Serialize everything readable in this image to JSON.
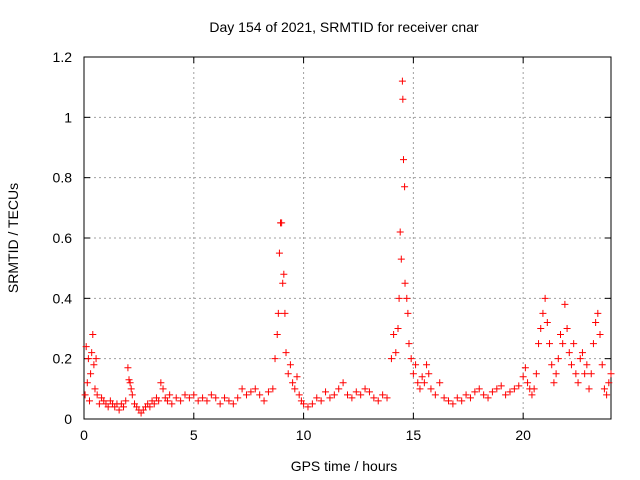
{
  "chart_data": {
    "type": "scatter",
    "title": "Day 154 of 2021, SRMTID for receiver cnar",
    "xlabel": "GPS time / hours",
    "ylabel": "SRMTID / TECUs",
    "xlim": [
      0,
      24
    ],
    "ylim": [
      0,
      1.2
    ],
    "xticks": [
      0,
      5,
      10,
      15,
      20
    ],
    "xtick_labels": [
      "0",
      "5",
      "10",
      "15",
      "20"
    ],
    "yticks": [
      0,
      0.2,
      0.4,
      0.6,
      0.8,
      1,
      1.2
    ],
    "ytick_labels": [
      "0",
      "0.2",
      "0.4",
      "0.6",
      "0.8",
      "1",
      "1.2"
    ],
    "grid": true,
    "marker": "+",
    "color": "#ff0000",
    "series": [
      {
        "name": "SRMTID",
        "points": [
          [
            0.05,
            0.08
          ],
          [
            0.1,
            0.24
          ],
          [
            0.15,
            0.12
          ],
          [
            0.2,
            0.2
          ],
          [
            0.25,
            0.06
          ],
          [
            0.3,
            0.15
          ],
          [
            0.35,
            0.22
          ],
          [
            0.4,
            0.28
          ],
          [
            0.45,
            0.18
          ],
          [
            0.5,
            0.1
          ],
          [
            0.55,
            0.2
          ],
          [
            0.6,
            0.08
          ],
          [
            0.7,
            0.05
          ],
          [
            0.8,
            0.07
          ],
          [
            0.9,
            0.06
          ],
          [
            1.0,
            0.05
          ],
          [
            1.1,
            0.04
          ],
          [
            1.2,
            0.06
          ],
          [
            1.3,
            0.05
          ],
          [
            1.4,
            0.04
          ],
          [
            1.5,
            0.05
          ],
          [
            1.6,
            0.03
          ],
          [
            1.7,
            0.05
          ],
          [
            1.8,
            0.04
          ],
          [
            1.9,
            0.06
          ],
          [
            2.0,
            0.17
          ],
          [
            2.05,
            0.13
          ],
          [
            2.1,
            0.12
          ],
          [
            2.15,
            0.1
          ],
          [
            2.2,
            0.08
          ],
          [
            2.3,
            0.05
          ],
          [
            2.4,
            0.04
          ],
          [
            2.5,
            0.03
          ],
          [
            2.6,
            0.02
          ],
          [
            2.7,
            0.03
          ],
          [
            2.8,
            0.04
          ],
          [
            2.9,
            0.05
          ],
          [
            3.0,
            0.04
          ],
          [
            3.1,
            0.06
          ],
          [
            3.2,
            0.05
          ],
          [
            3.3,
            0.07
          ],
          [
            3.4,
            0.06
          ],
          [
            3.5,
            0.12
          ],
          [
            3.6,
            0.1
          ],
          [
            3.7,
            0.07
          ],
          [
            3.8,
            0.06
          ],
          [
            3.9,
            0.08
          ],
          [
            4.0,
            0.05
          ],
          [
            4.2,
            0.07
          ],
          [
            4.4,
            0.06
          ],
          [
            4.6,
            0.08
          ],
          [
            4.8,
            0.07
          ],
          [
            5.0,
            0.08
          ],
          [
            5.2,
            0.06
          ],
          [
            5.4,
            0.07
          ],
          [
            5.6,
            0.06
          ],
          [
            5.8,
            0.08
          ],
          [
            6.0,
            0.07
          ],
          [
            6.2,
            0.05
          ],
          [
            6.4,
            0.07
          ],
          [
            6.6,
            0.06
          ],
          [
            6.8,
            0.05
          ],
          [
            7.0,
            0.07
          ],
          [
            7.2,
            0.1
          ],
          [
            7.4,
            0.08
          ],
          [
            7.6,
            0.09
          ],
          [
            7.8,
            0.1
          ],
          [
            8.0,
            0.08
          ],
          [
            8.2,
            0.06
          ],
          [
            8.4,
            0.09
          ],
          [
            8.6,
            0.1
          ],
          [
            8.7,
            0.2
          ],
          [
            8.8,
            0.28
          ],
          [
            8.85,
            0.35
          ],
          [
            8.9,
            0.55
          ],
          [
            8.95,
            0.65
          ],
          [
            9.0,
            0.65
          ],
          [
            9.05,
            0.45
          ],
          [
            9.1,
            0.48
          ],
          [
            9.15,
            0.35
          ],
          [
            9.2,
            0.22
          ],
          [
            9.3,
            0.15
          ],
          [
            9.4,
            0.18
          ],
          [
            9.5,
            0.12
          ],
          [
            9.6,
            0.1
          ],
          [
            9.7,
            0.14
          ],
          [
            9.8,
            0.08
          ],
          [
            9.9,
            0.06
          ],
          [
            10.0,
            0.05
          ],
          [
            10.2,
            0.04
          ],
          [
            10.4,
            0.05
          ],
          [
            10.6,
            0.07
          ],
          [
            10.8,
            0.06
          ],
          [
            11.0,
            0.09
          ],
          [
            11.2,
            0.07
          ],
          [
            11.4,
            0.08
          ],
          [
            11.6,
            0.1
          ],
          [
            11.8,
            0.12
          ],
          [
            12.0,
            0.08
          ],
          [
            12.2,
            0.07
          ],
          [
            12.4,
            0.09
          ],
          [
            12.6,
            0.08
          ],
          [
            12.8,
            0.1
          ],
          [
            13.0,
            0.09
          ],
          [
            13.2,
            0.07
          ],
          [
            13.4,
            0.06
          ],
          [
            13.6,
            0.08
          ],
          [
            13.8,
            0.07
          ],
          [
            14.0,
            0.2
          ],
          [
            14.1,
            0.28
          ],
          [
            14.2,
            0.22
          ],
          [
            14.3,
            0.3
          ],
          [
            14.35,
            0.4
          ],
          [
            14.4,
            0.62
          ],
          [
            14.45,
            0.53
          ],
          [
            14.5,
            1.12
          ],
          [
            14.52,
            1.06
          ],
          [
            14.55,
            0.86
          ],
          [
            14.6,
            0.77
          ],
          [
            14.62,
            0.45
          ],
          [
            14.7,
            0.4
          ],
          [
            14.75,
            0.35
          ],
          [
            14.8,
            0.25
          ],
          [
            14.9,
            0.2
          ],
          [
            15.0,
            0.15
          ],
          [
            15.1,
            0.18
          ],
          [
            15.2,
            0.12
          ],
          [
            15.3,
            0.1
          ],
          [
            15.4,
            0.14
          ],
          [
            15.5,
            0.12
          ],
          [
            15.6,
            0.18
          ],
          [
            15.7,
            0.15
          ],
          [
            15.8,
            0.1
          ],
          [
            16.0,
            0.08
          ],
          [
            16.2,
            0.12
          ],
          [
            16.4,
            0.07
          ],
          [
            16.6,
            0.06
          ],
          [
            16.8,
            0.05
          ],
          [
            17.0,
            0.07
          ],
          [
            17.2,
            0.06
          ],
          [
            17.4,
            0.08
          ],
          [
            17.6,
            0.07
          ],
          [
            17.8,
            0.09
          ],
          [
            18.0,
            0.1
          ],
          [
            18.2,
            0.08
          ],
          [
            18.4,
            0.07
          ],
          [
            18.6,
            0.09
          ],
          [
            18.8,
            0.1
          ],
          [
            19.0,
            0.11
          ],
          [
            19.2,
            0.08
          ],
          [
            19.4,
            0.09
          ],
          [
            19.6,
            0.1
          ],
          [
            19.8,
            0.11
          ],
          [
            20.0,
            0.14
          ],
          [
            20.1,
            0.17
          ],
          [
            20.2,
            0.12
          ],
          [
            20.3,
            0.1
          ],
          [
            20.4,
            0.08
          ],
          [
            20.5,
            0.1
          ],
          [
            20.6,
            0.15
          ],
          [
            20.7,
            0.25
          ],
          [
            20.8,
            0.3
          ],
          [
            20.9,
            0.35
          ],
          [
            21.0,
            0.4
          ],
          [
            21.1,
            0.32
          ],
          [
            21.2,
            0.25
          ],
          [
            21.3,
            0.18
          ],
          [
            21.4,
            0.12
          ],
          [
            21.5,
            0.15
          ],
          [
            21.6,
            0.2
          ],
          [
            21.7,
            0.28
          ],
          [
            21.8,
            0.25
          ],
          [
            21.9,
            0.38
          ],
          [
            22.0,
            0.3
          ],
          [
            22.1,
            0.22
          ],
          [
            22.2,
            0.18
          ],
          [
            22.3,
            0.25
          ],
          [
            22.4,
            0.15
          ],
          [
            22.5,
            0.12
          ],
          [
            22.6,
            0.2
          ],
          [
            22.7,
            0.22
          ],
          [
            22.8,
            0.15
          ],
          [
            22.9,
            0.18
          ],
          [
            23.0,
            0.1
          ],
          [
            23.1,
            0.15
          ],
          [
            23.2,
            0.25
          ],
          [
            23.3,
            0.32
          ],
          [
            23.4,
            0.35
          ],
          [
            23.5,
            0.28
          ],
          [
            23.6,
            0.18
          ],
          [
            23.7,
            0.1
          ],
          [
            23.8,
            0.08
          ],
          [
            23.9,
            0.12
          ],
          [
            24.0,
            0.15
          ]
        ]
      }
    ]
  }
}
